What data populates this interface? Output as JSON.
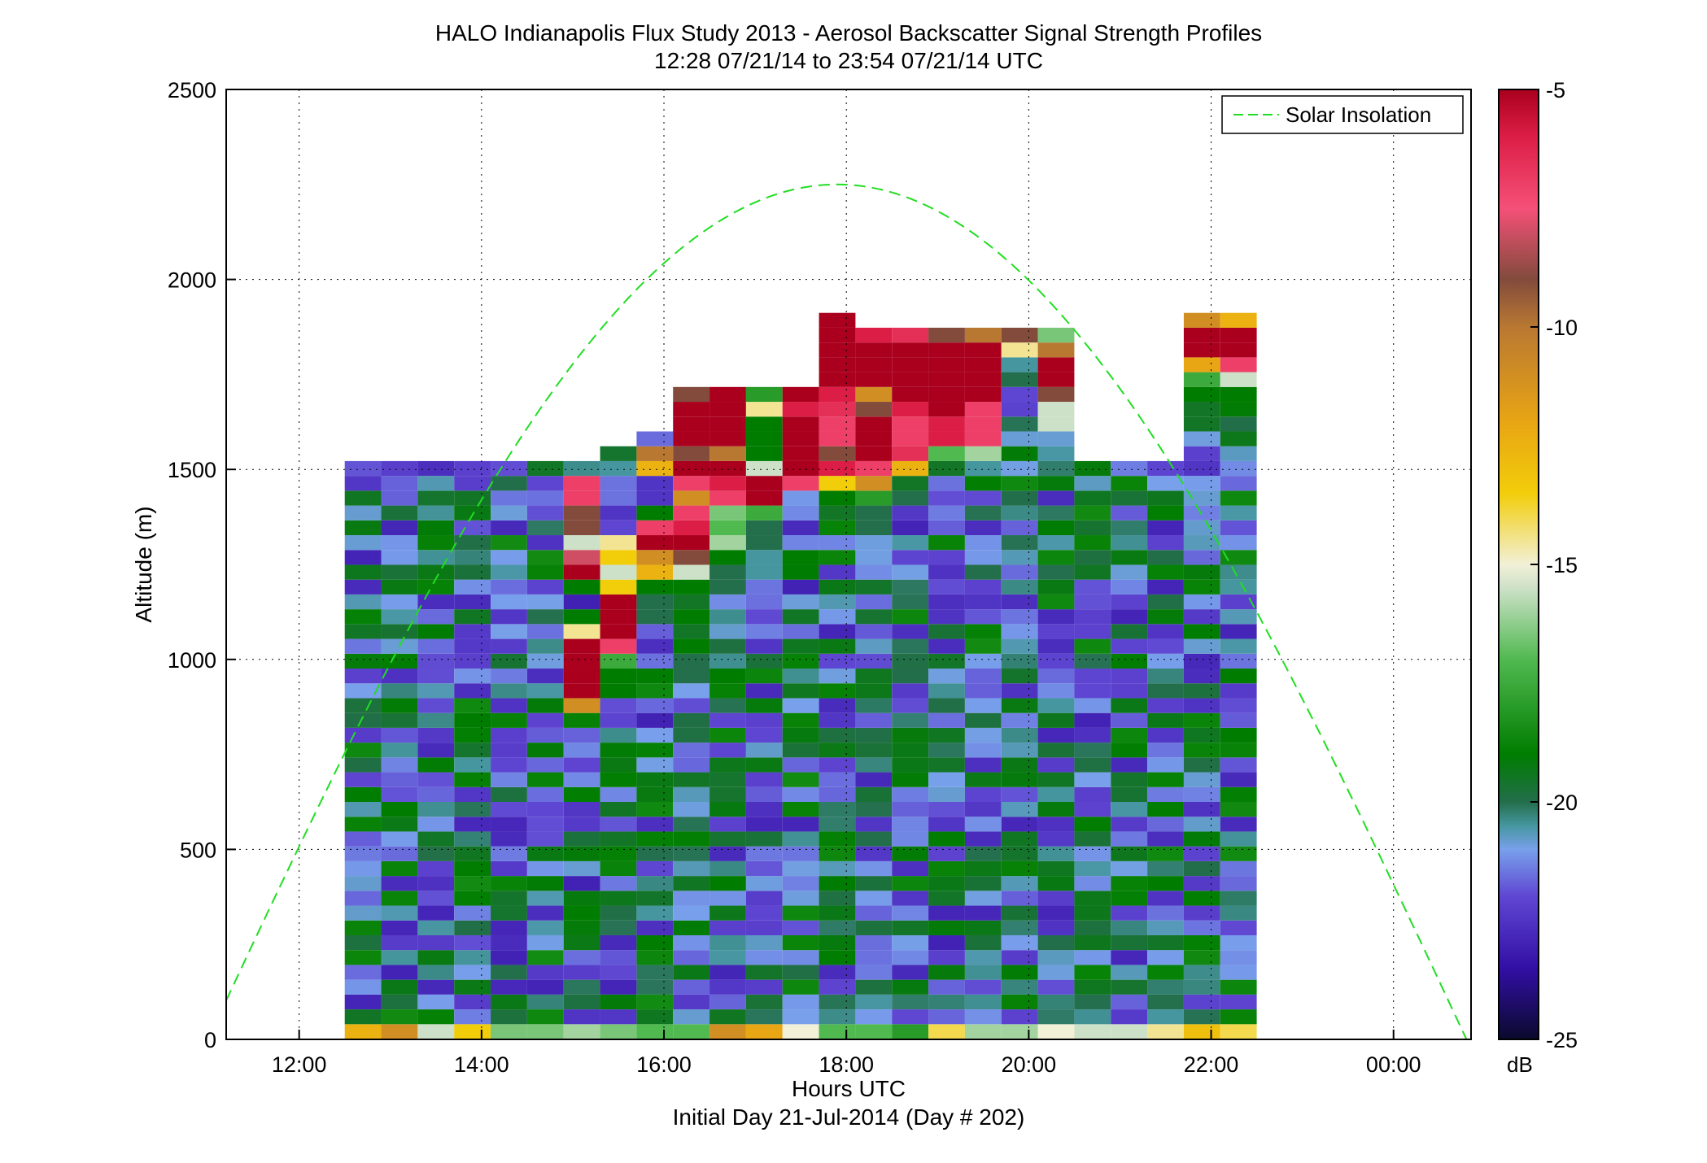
{
  "chart_data": {
    "type": "heatmap",
    "title": "HALO Indianapolis Flux Study 2013 - Aerosol Backscatter Signal Strength Profiles",
    "subtitle": "12:28 07/21/14 to 23:54 07/21/14  UTC",
    "xlabel": "Hours UTC",
    "xlabel2": "Initial Day 21-Jul-2014 (Day # 202)",
    "ylabel": "Altitude (m)",
    "xlim": [
      11.2,
      24.85
    ],
    "ylim": [
      0,
      2500
    ],
    "x_ticks": [
      12,
      14,
      16,
      18,
      20,
      22,
      24
    ],
    "x_tick_labels": [
      "12:00",
      "14:00",
      "16:00",
      "18:00",
      "20:00",
      "22:00",
      "00:00"
    ],
    "y_ticks": [
      0,
      500,
      1000,
      1500,
      2000,
      2500
    ],
    "y_tick_labels": [
      "0",
      "500",
      "1000",
      "1500",
      "2000",
      "2500"
    ],
    "grid": true,
    "legend": {
      "placement": "top-right",
      "entries": [
        "Solar Insolation"
      ]
    },
    "colorbar": {
      "label": "dB",
      "range": [
        -25,
        -5
      ],
      "ticks": [
        -25,
        -20,
        -15,
        -10,
        -5
      ],
      "tick_labels": [
        "-25",
        "-20",
        "-15",
        "-10",
        "-5"
      ]
    },
    "cells": {
      "t_start": 12.5,
      "bin_hours": 0.4,
      "alt_start": 40,
      "bin_m": 39,
      "columns": [
        {
          "ng": [],
          "bot": [
            -12.5
          ],
          "hi": []
        },
        {
          "ng": [],
          "bot": [
            -11
          ],
          "hi": []
        },
        {
          "ng": [],
          "bot": [
            -15.5
          ],
          "hi": []
        },
        {
          "ng": [],
          "bot": [
            -13.5
          ],
          "hi": []
        },
        {
          "ng": [],
          "bot": [
            -16.5
          ],
          "hi": []
        },
        {
          "ng": [],
          "bot": [
            -16.5
          ],
          "hi": []
        },
        {
          "ng": [],
          "bot": [
            -16
          ],
          "hi": [
            [
              1460,
              -7
            ],
            [
              1420,
              -7
            ],
            [
              1380,
              -9
            ],
            [
              1340,
              -9
            ],
            [
              1300,
              -15.5
            ],
            [
              1260,
              -8
            ],
            [
              1220,
              -5
            ],
            [
              1180,
              -19
            ],
            [
              1140,
              -23
            ],
            [
              1100,
              -19
            ],
            [
              1060,
              -14.5
            ],
            [
              1020,
              -5
            ],
            [
              980,
              -5
            ],
            [
              940,
              -5
            ],
            [
              900,
              -5
            ],
            [
              860,
              -11
            ]
          ]
        },
        {
          "ng": [],
          "bot": [
            -16.5
          ],
          "hi": [
            [
              1500,
              -20.5
            ],
            [
              1460,
              -21.5
            ],
            [
              1420,
              -21.5
            ],
            [
              1380,
              -22.5
            ],
            [
              1340,
              -22
            ],
            [
              1300,
              -14.5
            ],
            [
              1260,
              -13.5
            ],
            [
              1220,
              -15.5
            ],
            [
              1180,
              -13.5
            ],
            [
              1140,
              -5
            ],
            [
              1100,
              -5
            ],
            [
              1060,
              -5
            ],
            [
              1020,
              -7
            ],
            [
              980,
              -17.5
            ],
            [
              940,
              -19
            ],
            [
              900,
              -19
            ]
          ]
        },
        {
          "ng": [],
          "bot": [
            -17
          ],
          "hi": [
            [
              1540,
              -10
            ],
            [
              1500,
              -12.5
            ],
            [
              1460,
              -22.5
            ],
            [
              1420,
              -22.5
            ],
            [
              1380,
              -19
            ],
            [
              1340,
              -7
            ],
            [
              1300,
              -5
            ],
            [
              1260,
              -11
            ],
            [
              1220,
              -12.5
            ],
            [
              1180,
              -19
            ],
            [
              1140,
              -20
            ],
            [
              1100,
              -20
            ]
          ]
        },
        {
          "ng": [],
          "bot": [
            -17
          ],
          "hi": [
            [
              1660,
              -9
            ],
            [
              1620,
              -5
            ],
            [
              1580,
              -5
            ],
            [
              1540,
              -9
            ],
            [
              1500,
              -5
            ],
            [
              1460,
              -7
            ],
            [
              1420,
              -11
            ],
            [
              1380,
              -7
            ],
            [
              1340,
              -6
            ],
            [
              1300,
              -5
            ],
            [
              1260,
              -9
            ],
            [
              1220,
              -15.5
            ],
            [
              1180,
              -19
            ],
            [
              1140,
              -19.5
            ],
            [
              1100,
              -19
            ],
            [
              1060,
              -19.5
            ],
            [
              1020,
              -19
            ],
            [
              980,
              -20
            ],
            [
              940,
              -20
            ],
            [
              900,
              -21
            ]
          ]
        },
        {
          "ng": [],
          "bot": [
            -11
          ],
          "hi": [
            [
              1660,
              -5
            ],
            [
              1620,
              -5
            ],
            [
              1580,
              -5
            ],
            [
              1540,
              -10
            ],
            [
              1500,
              -5
            ],
            [
              1460,
              -6
            ],
            [
              1420,
              -7
            ],
            [
              1380,
              -16.5
            ],
            [
              1340,
              -17
            ],
            [
              1300,
              -16
            ],
            [
              1260,
              -19
            ],
            [
              1220,
              -20
            ],
            [
              1180,
              -20
            ]
          ]
        },
        {
          "ng": [],
          "bot": [
            -12
          ],
          "hi": [
            [
              1660,
              -18
            ],
            [
              1620,
              -14.5
            ],
            [
              1580,
              -19
            ],
            [
              1540,
              -19
            ],
            [
              1500,
              -15.5
            ],
            [
              1460,
              -5
            ],
            [
              1420,
              -5
            ],
            [
              1380,
              -17.5
            ],
            [
              1340,
              -20
            ],
            [
              1300,
              -20
            ],
            [
              1260,
              -20.5
            ],
            [
              1220,
              -20.5
            ]
          ]
        },
        {
          "ng": [],
          "bot": [
            -15
          ],
          "hi": [
            [
              1660,
              -5
            ],
            [
              1620,
              -6
            ],
            [
              1580,
              -5
            ],
            [
              1540,
              -5
            ],
            [
              1500,
              -5
            ],
            [
              1460,
              -7
            ]
          ]
        },
        {
          "ng": [],
          "bot": [
            -17
          ],
          "hi": [
            [
              1860,
              -5
            ],
            [
              1820,
              -5
            ],
            [
              1780,
              -5
            ],
            [
              1740,
              -5
            ],
            [
              1700,
              -5
            ],
            [
              1660,
              -6
            ],
            [
              1620,
              -6.5
            ],
            [
              1580,
              -7
            ],
            [
              1540,
              -9
            ],
            [
              1500,
              -6
            ],
            [
              1460,
              -13.5
            ],
            [
              1420,
              -19
            ],
            [
              1380,
              -19.5
            ]
          ]
        },
        {
          "ng": [],
          "bot": [
            -17
          ],
          "hi": [
            [
              1820,
              -6
            ],
            [
              1780,
              -5
            ],
            [
              1740,
              -5
            ],
            [
              1700,
              -5
            ],
            [
              1660,
              -11
            ],
            [
              1620,
              -9
            ],
            [
              1580,
              -5
            ],
            [
              1540,
              -5
            ],
            [
              1500,
              -7
            ],
            [
              1460,
              -11
            ],
            [
              1420,
              -18
            ],
            [
              1380,
              -20
            ],
            [
              1340,
              -20
            ]
          ]
        },
        {
          "ng": [],
          "bot": [
            -18
          ],
          "hi": [
            [
              1820,
              -6.5
            ],
            [
              1780,
              -5
            ],
            [
              1740,
              -5
            ],
            [
              1700,
              -5
            ],
            [
              1660,
              -5
            ],
            [
              1620,
              -6
            ],
            [
              1580,
              -7
            ],
            [
              1540,
              -6.5
            ],
            [
              1500,
              -12.5
            ],
            [
              1460,
              -19.5
            ],
            [
              1420,
              -20
            ]
          ]
        },
        {
          "ng": [],
          "bot": [
            -14
          ],
          "hi": [
            [
              1820,
              -9
            ],
            [
              1780,
              -5
            ],
            [
              1740,
              -5
            ],
            [
              1700,
              -5
            ],
            [
              1660,
              -5
            ],
            [
              1620,
              -5
            ],
            [
              1580,
              -6
            ],
            [
              1540,
              -17
            ],
            [
              1500,
              -19.5
            ]
          ]
        },
        {
          "ng": [],
          "bot": [
            -16
          ],
          "hi": [
            [
              1820,
              -10
            ],
            [
              1780,
              -5
            ],
            [
              1740,
              -5
            ],
            [
              1700,
              -5
            ],
            [
              1660,
              -5
            ],
            [
              1620,
              -7
            ],
            [
              1580,
              -7
            ],
            [
              1540,
              -16
            ],
            [
              1500,
              -20.5
            ]
          ]
        },
        {
          "ng": [],
          "bot": [
            -16
          ],
          "hi": [
            [
              1820,
              -9
            ],
            [
              1780,
              -14.5
            ],
            [
              1740,
              -20.5
            ],
            [
              1700,
              -20
            ],
            [
              1660,
              -22
            ]
          ]
        },
        {
          "ng": [],
          "bot": [
            -15
          ],
          "hi": [
            [
              1820,
              -16.5
            ],
            [
              1780,
              -10
            ],
            [
              1740,
              -5
            ],
            [
              1700,
              -5
            ],
            [
              1660,
              -9
            ],
            [
              1620,
              -15.5
            ]
          ]
        },
        {
          "ng": [],
          "bot": [
            -15.5
          ],
          "hi": []
        },
        {
          "ng": [],
          "bot": [
            -15.5
          ],
          "hi": []
        },
        {
          "ng": [],
          "bot": [
            -14.5
          ],
          "hi": []
        },
        {
          "ng": [],
          "bot": [
            -13
          ],
          "hi": [
            [
              1860,
              -11
            ],
            [
              1820,
              -5
            ],
            [
              1780,
              -5
            ],
            [
              1740,
              -12
            ],
            [
              1700,
              -17.5
            ],
            [
              1660,
              -19
            ],
            [
              1620,
              -19.5
            ]
          ]
        },
        {
          "ng": [],
          "bot": [
            -14
          ],
          "hi": [
            [
              1860,
              -12.5
            ],
            [
              1820,
              -5
            ],
            [
              1780,
              -5
            ],
            [
              1740,
              -7
            ],
            [
              1700,
              -15.5
            ],
            [
              1660,
              -19
            ]
          ]
        }
      ]
    }
  }
}
